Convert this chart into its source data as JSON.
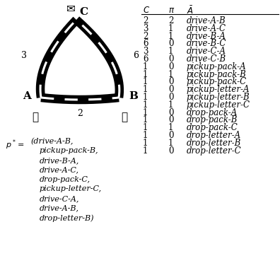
{
  "background_color": "#ffffff",
  "table_data": [
    [
      2,
      2,
      "drive-A-B"
    ],
    [
      3,
      1,
      "drive-A-C"
    ],
    [
      2,
      1,
      "drive-B-A"
    ],
    [
      6,
      0,
      "drive-B-C"
    ],
    [
      3,
      1,
      "drive-C-A"
    ],
    [
      6,
      0,
      "drive-C-B"
    ],
    [
      1,
      0,
      "pickup-pack-A"
    ],
    [
      1,
      1,
      "pickup-pack-B"
    ],
    [
      1,
      0,
      "pickup-pack-C"
    ],
    [
      1,
      0,
      "pickup-letter-A"
    ],
    [
      1,
      0,
      "pickup-letter-B"
    ],
    [
      1,
      1,
      "pickup-letter-C"
    ],
    [
      1,
      0,
      "drop-pack-A"
    ],
    [
      1,
      0,
      "drop-pack-B"
    ],
    [
      1,
      1,
      "drop-pack-C"
    ],
    [
      1,
      0,
      "drop-letter-A"
    ],
    [
      1,
      1,
      "drop-letter-B"
    ],
    [
      1,
      0,
      "drop-letter-C"
    ]
  ],
  "plan_lines": [
    [
      "p",
      "*",
      " = (drive-A-B,"
    ],
    [
      "",
      "",
      "      pickup-pack-B,"
    ],
    [
      "",
      "",
      "      drive-B-A,"
    ],
    [
      "",
      "",
      "      drive-A-C,"
    ],
    [
      "",
      "",
      "      drop-pack-C,"
    ],
    [
      "",
      "",
      "      pickup-letter-C,"
    ],
    [
      "",
      "",
      "      drive-C-A,"
    ],
    [
      "",
      "",
      "      drive-A-B,"
    ],
    [
      "",
      "",
      "      drop-letter-B)"
    ]
  ],
  "road_lw": 9,
  "road_lw_dash": 2.2
}
